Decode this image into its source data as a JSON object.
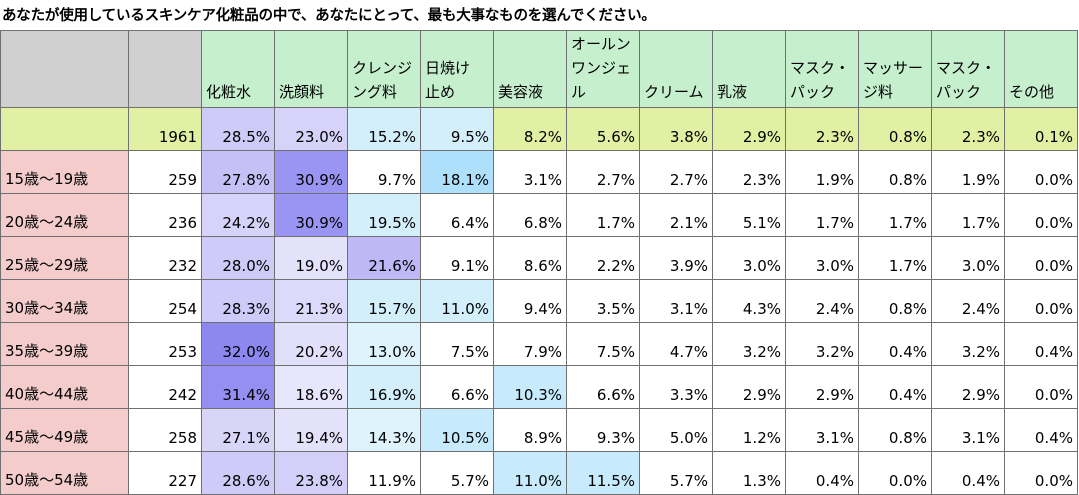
{
  "title": "あなたが使用しているスキンケア化粧品の中で、あなたにとって、最も大事なものを選んでください。",
  "columns": [
    {
      "lines": [
        "化粧水"
      ]
    },
    {
      "lines": [
        "洗顔料"
      ]
    },
    {
      "lines": [
        "クレンジ",
        "ング料"
      ]
    },
    {
      "lines": [
        "日焼け",
        "止め"
      ]
    },
    {
      "lines": [
        "美容液"
      ]
    },
    {
      "lines": [
        "オールン",
        "ワンジェ",
        "ル"
      ]
    },
    {
      "lines": [
        "クリーム"
      ]
    },
    {
      "lines": [
        "乳液"
      ]
    },
    {
      "lines": [
        "マスク・",
        "パック"
      ]
    },
    {
      "lines": [
        "マッサー",
        "ジ料"
      ]
    },
    {
      "lines": [
        "マスク・",
        "パック"
      ]
    },
    {
      "lines": [
        "その他"
      ]
    }
  ],
  "total": {
    "label": "",
    "n": "1961",
    "values": [
      "28.5%",
      "23.0%",
      "15.2%",
      "9.5%",
      "8.2%",
      "5.6%",
      "3.8%",
      "2.9%",
      "2.3%",
      "0.8%",
      "2.3%",
      "0.1%"
    ]
  },
  "rows": [
    {
      "label": "15歳～19歳",
      "n": "259",
      "values": [
        "27.8%",
        "30.9%",
        "9.7%",
        "18.1%",
        "3.1%",
        "2.7%",
        "2.7%",
        "2.3%",
        "1.9%",
        "0.8%",
        "1.9%",
        "0.0%"
      ]
    },
    {
      "label": "20歳～24歳",
      "n": "236",
      "values": [
        "24.2%",
        "30.9%",
        "19.5%",
        "6.4%",
        "6.8%",
        "1.7%",
        "2.1%",
        "5.1%",
        "1.7%",
        "1.7%",
        "1.7%",
        "0.0%"
      ]
    },
    {
      "label": "25歳～29歳",
      "n": "232",
      "values": [
        "28.0%",
        "19.0%",
        "21.6%",
        "9.1%",
        "8.6%",
        "2.2%",
        "3.9%",
        "3.0%",
        "3.0%",
        "1.7%",
        "3.0%",
        "0.0%"
      ]
    },
    {
      "label": "30歳～34歳",
      "n": "254",
      "values": [
        "28.3%",
        "21.3%",
        "15.7%",
        "11.0%",
        "9.4%",
        "3.5%",
        "3.1%",
        "4.3%",
        "2.4%",
        "0.8%",
        "2.4%",
        "0.0%"
      ]
    },
    {
      "label": "35歳～39歳",
      "n": "253",
      "values": [
        "32.0%",
        "20.2%",
        "13.0%",
        "7.5%",
        "7.9%",
        "7.5%",
        "4.7%",
        "3.2%",
        "3.2%",
        "0.4%",
        "3.2%",
        "0.4%"
      ]
    },
    {
      "label": "40歳～44歳",
      "n": "242",
      "values": [
        "31.4%",
        "18.6%",
        "16.9%",
        "6.6%",
        "10.3%",
        "6.6%",
        "3.3%",
        "2.9%",
        "2.9%",
        "0.4%",
        "2.9%",
        "0.0%"
      ]
    },
    {
      "label": "45歳～49歳",
      "n": "258",
      "values": [
        "27.1%",
        "19.4%",
        "14.3%",
        "10.5%",
        "8.9%",
        "9.3%",
        "5.0%",
        "1.2%",
        "3.1%",
        "0.8%",
        "3.1%",
        "0.4%"
      ]
    },
    {
      "label": "50歳～54歳",
      "n": "227",
      "values": [
        "28.6%",
        "23.8%",
        "11.9%",
        "5.7%",
        "11.0%",
        "11.5%",
        "5.7%",
        "1.3%",
        "0.4%",
        "0.0%",
        "0.4%",
        "0.0%"
      ]
    }
  ],
  "colors": {
    "header_metric": "#c6efce",
    "header_blank": "#d0d0d0",
    "total_row": "#e2f0a4",
    "row_label": "#f4cccc",
    "bar_purple": "#8d87f0",
    "bar_blue": "#aee0fb"
  },
  "cell_fills": [
    [
      "#cfcbf8",
      "#d6d2f9",
      "#d3effc",
      "#d3effc",
      "#ffffff",
      "#ffffff",
      "#ffffff",
      "#ffffff",
      "#ffffff",
      "#ffffff",
      "#ffffff",
      "#ffffff"
    ],
    [
      "#c5c1f7",
      "#9a95f2",
      "#ffffff",
      "#aee0fb",
      "#ffffff",
      "#ffffff",
      "#ffffff",
      "#ffffff",
      "#ffffff",
      "#ffffff",
      "#ffffff",
      "#ffffff"
    ],
    [
      "#d6d2f9",
      "#9a95f2",
      "#d3effc",
      "#ffffff",
      "#ffffff",
      "#ffffff",
      "#ffffff",
      "#ffffff",
      "#ffffff",
      "#ffffff",
      "#ffffff",
      "#ffffff"
    ],
    [
      "#cfcbf8",
      "#e4e1fb",
      "#bfb8f7",
      "#ffffff",
      "#ffffff",
      "#ffffff",
      "#ffffff",
      "#ffffff",
      "#ffffff",
      "#ffffff",
      "#ffffff",
      "#ffffff"
    ],
    [
      "#cfcbf8",
      "#ddd9fa",
      "#d3effc",
      "#d3effc",
      "#ffffff",
      "#ffffff",
      "#ffffff",
      "#ffffff",
      "#ffffff",
      "#ffffff",
      "#ffffff",
      "#ffffff"
    ],
    [
      "#8d87f0",
      "#e2dffb",
      "#dff3fd",
      "#ffffff",
      "#ffffff",
      "#ffffff",
      "#ffffff",
      "#ffffff",
      "#ffffff",
      "#ffffff",
      "#ffffff",
      "#ffffff"
    ],
    [
      "#948ff1",
      "#e8e6fc",
      "#d3effc",
      "#ffffff",
      "#c7ebfc",
      "#ffffff",
      "#ffffff",
      "#ffffff",
      "#ffffff",
      "#ffffff",
      "#ffffff",
      "#ffffff"
    ],
    [
      "#d8d5f9",
      "#e4e1fb",
      "#dff3fd",
      "#c7ebfc",
      "#ffffff",
      "#ffffff",
      "#ffffff",
      "#ffffff",
      "#ffffff",
      "#ffffff",
      "#ffffff",
      "#ffffff"
    ],
    [
      "#cfcbf8",
      "#d3cff8",
      "#ffffff",
      "#ffffff",
      "#c7ebfc",
      "#c7ebfc",
      "#ffffff",
      "#ffffff",
      "#ffffff",
      "#ffffff",
      "#ffffff",
      "#ffffff"
    ]
  ]
}
